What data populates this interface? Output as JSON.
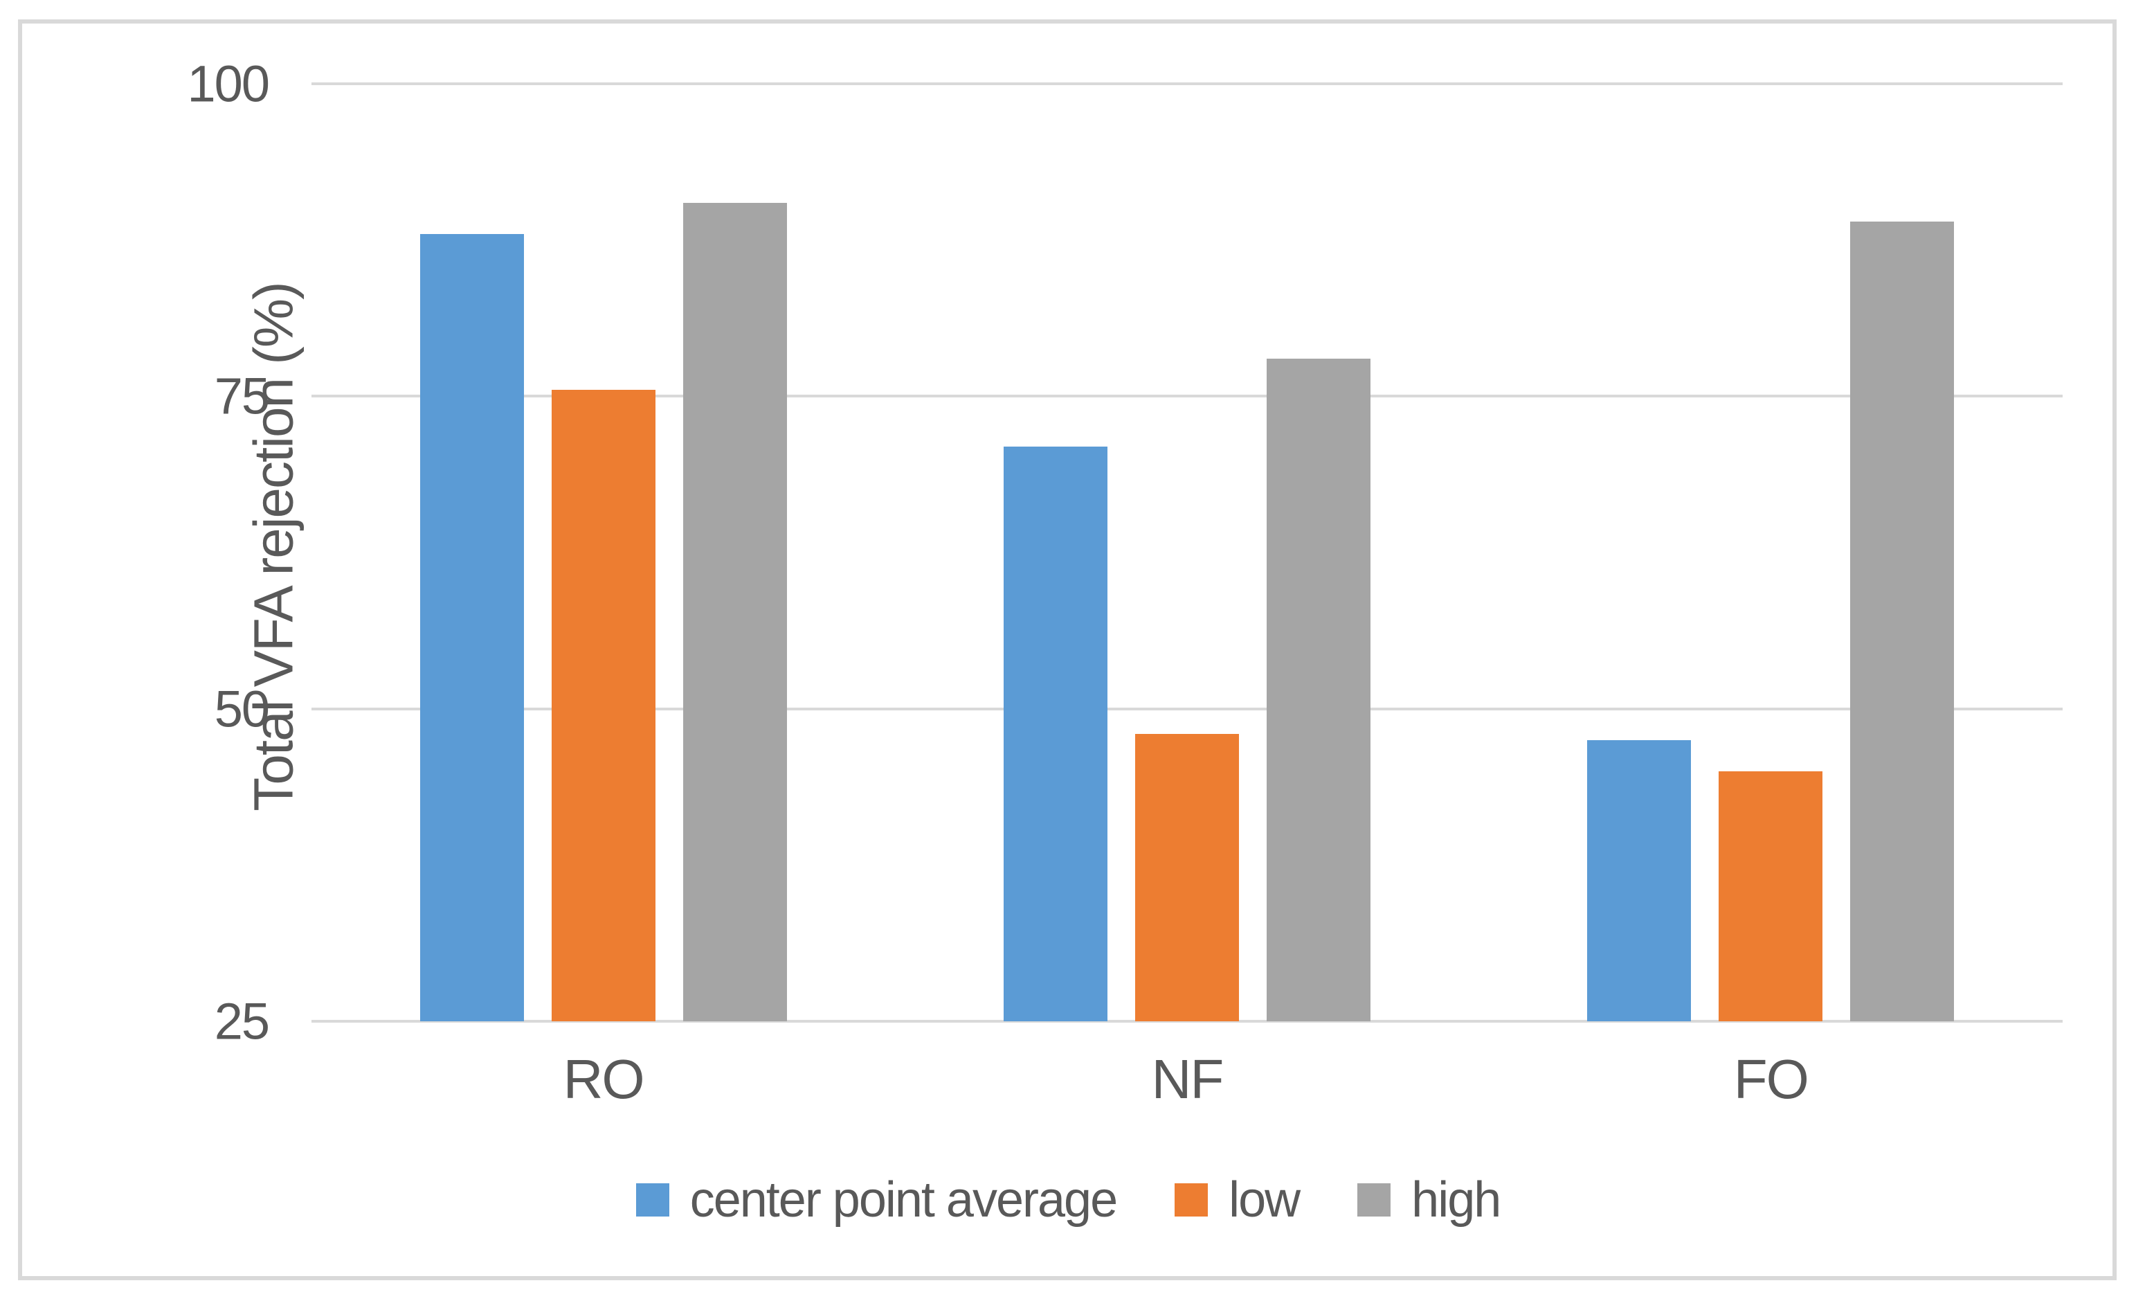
{
  "figure": {
    "background_color": "#FFFFFF",
    "border_color": "#D9D9D9",
    "gridline_color": "#D9D9D9",
    "text_color": "#595959"
  },
  "chart_data": {
    "type": "bar",
    "title": "",
    "xlabel": "",
    "ylabel": "Total VFA rejection (%)",
    "categories": [
      "RO",
      "NF",
      "FO"
    ],
    "series": [
      {
        "name": "center point average",
        "color": "#5B9BD5",
        "values": [
          88,
          71,
          47.5
        ]
      },
      {
        "name": "low",
        "color": "#ED7D31",
        "values": [
          75.5,
          48,
          45
        ]
      },
      {
        "name": "high",
        "color": "#A5A5A5",
        "values": [
          90.5,
          78,
          89
        ]
      }
    ],
    "ylim": [
      25,
      100
    ],
    "y_ticks": [
      100,
      75,
      50,
      25
    ],
    "grid": "horizontal",
    "legend_position": "bottom"
  }
}
